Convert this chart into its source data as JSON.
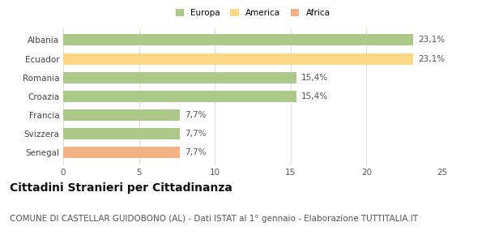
{
  "categories": [
    "Albania",
    "Ecuador",
    "Romania",
    "Croazia",
    "Francia",
    "Svizzera",
    "Senegal"
  ],
  "values": [
    23.1,
    23.1,
    15.4,
    15.4,
    7.7,
    7.7,
    7.7
  ],
  "labels": [
    "23,1%",
    "23,1%",
    "15,4%",
    "15,4%",
    "7,7%",
    "7,7%",
    "7,7%"
  ],
  "colors": [
    "#adc98a",
    "#fdd987",
    "#adc98a",
    "#adc98a",
    "#adc98a",
    "#adc98a",
    "#f4b183"
  ],
  "legend": [
    {
      "label": "Europa",
      "color": "#adc98a"
    },
    {
      "label": "America",
      "color": "#fdd987"
    },
    {
      "label": "Africa",
      "color": "#f4b183"
    }
  ],
  "xlim": [
    0,
    25
  ],
  "xticks": [
    0,
    5,
    10,
    15,
    20,
    25
  ],
  "title": "Cittadini Stranieri per Cittadinanza",
  "subtitle": "COMUNE DI CASTELLAR GUIDOBONO (AL) - Dati ISTAT al 1° gennaio - Elaborazione TUTTITALIA.IT",
  "title_fontsize": 10,
  "subtitle_fontsize": 7.5,
  "label_fontsize": 7.5,
  "tick_fontsize": 7.5,
  "bar_height": 0.6,
  "background_color": "#ffffff"
}
